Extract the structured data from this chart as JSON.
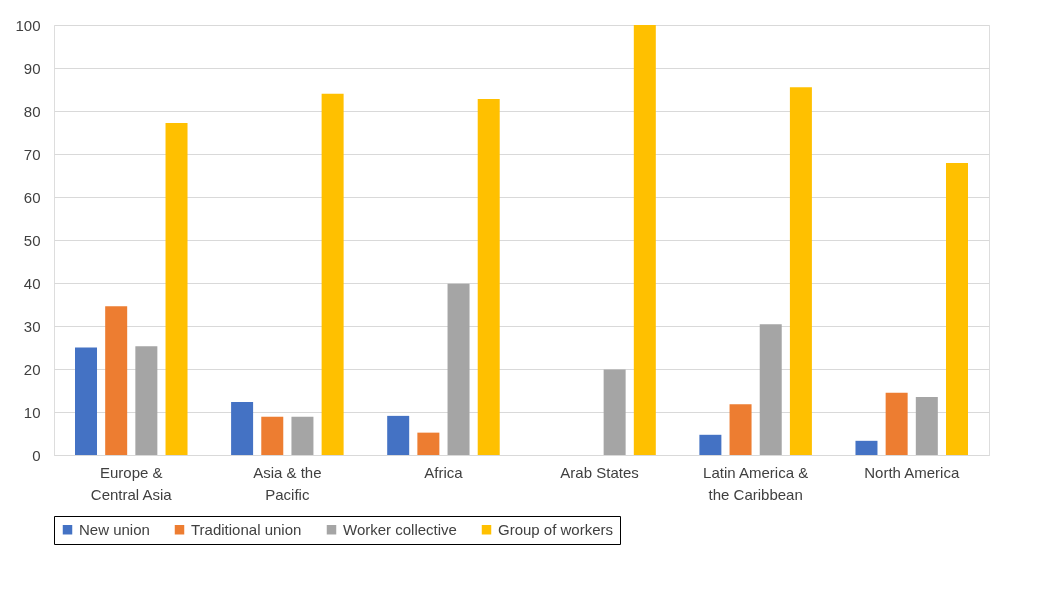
{
  "chart_data": {
    "type": "bar",
    "categories": [
      "Europe & Central Asia",
      "Asia & the Pacific",
      "Africa",
      "Arab States",
      "Latin America & the Caribbean",
      "North America"
    ],
    "series": [
      {
        "name": "New union",
        "color": "#4472c4",
        "values": [
          25,
          12.3,
          9.1,
          0,
          4.7,
          3.3
        ]
      },
      {
        "name": "Traditional union",
        "color": "#ed7d31",
        "values": [
          34.6,
          8.9,
          5.2,
          0,
          11.8,
          14.5
        ]
      },
      {
        "name": "Worker collective",
        "color": "#a5a5a5",
        "values": [
          25.3,
          8.9,
          39.8,
          19.9,
          30.4,
          13.5
        ]
      },
      {
        "name": "Group of workers",
        "color": "#ffc000",
        "values": [
          77.2,
          84.0,
          82.8,
          100,
          85.5,
          67.9
        ]
      }
    ],
    "ylim": [
      0,
      100
    ],
    "yticks": [
      0,
      10,
      20,
      30,
      40,
      50,
      60,
      70,
      80,
      90,
      100
    ],
    "grid": "y",
    "legend": "bottom"
  }
}
